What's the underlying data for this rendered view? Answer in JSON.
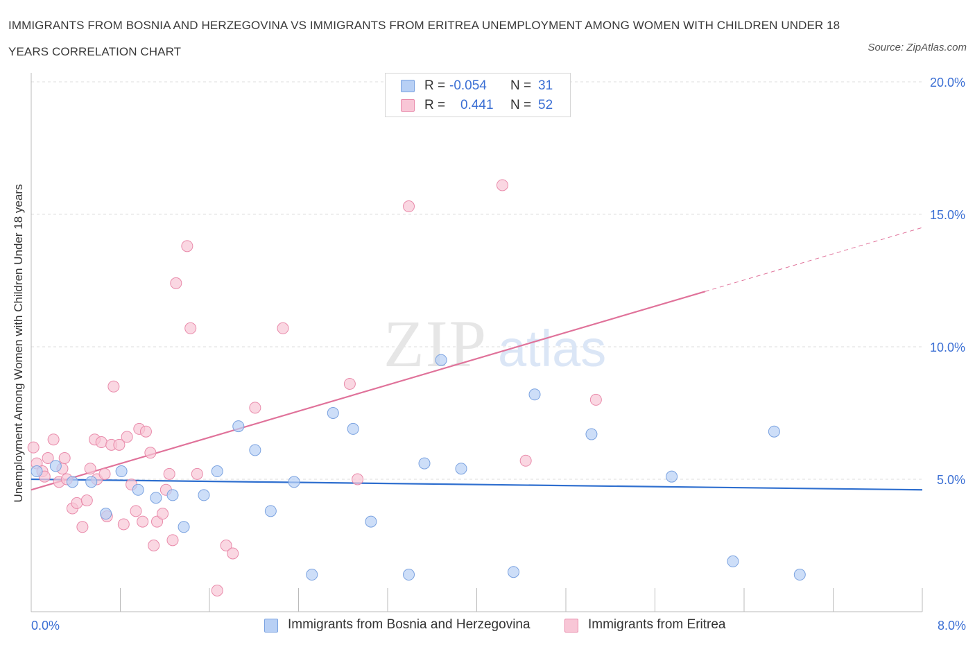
{
  "title": "IMMIGRANTS FROM BOSNIA AND HERZEGOVINA VS IMMIGRANTS FROM ERITREA UNEMPLOYMENT AMONG WOMEN WITH CHILDREN UNDER 18 YEARS CORRELATION CHART",
  "source": "Source: ZipAtlas.com",
  "watermark": {
    "zip": "ZIP",
    "atlas": "atlas"
  },
  "legend_top": [
    {
      "r_label": "R = ",
      "r_value": "-0.054",
      "n_label": "N = ",
      "n_value": "31"
    },
    {
      "r_label": "R = ",
      "r_value": "0.441",
      "n_label": "N = ",
      "n_value": "52"
    }
  ],
  "colors": {
    "blue_fill": "#b8d0f5",
    "blue_stroke": "#7aa2e0",
    "blue_line": "#2f6fcf",
    "pink_fill": "#f8c6d6",
    "pink_stroke": "#e98aaa",
    "pink_line": "#e0729a",
    "axis_text": "#3b6fd4",
    "grid": "#dddddd"
  },
  "chart_data": {
    "type": "scatter",
    "title": "IMMIGRANTS FROM BOSNIA AND HERZEGOVINA VS IMMIGRANTS FROM ERITREA UNEMPLOYMENT AMONG WOMEN WITH CHILDREN UNDER 18 YEARS CORRELATION CHART",
    "xlabel": "",
    "ylabel": "Unemployment Among Women with Children Under 18 years",
    "xlim": [
      0,
      8
    ],
    "ylim": [
      0,
      20
    ],
    "x_tick_labels": [
      "0.0%",
      "8.0%"
    ],
    "y_ticks": [
      5,
      10,
      15,
      20
    ],
    "y_tick_labels": [
      "5.0%",
      "10.0%",
      "15.0%",
      "20.0%"
    ],
    "grid": true,
    "legend": "bottom",
    "series": [
      {
        "name": "Immigrants from Bosnia and Herzegovina",
        "R": -0.054,
        "N": 31,
        "trend": {
          "x0": 0.0,
          "y0": 5.0,
          "x1": 8.0,
          "y1": 4.6
        },
        "points": [
          [
            0.05,
            5.3
          ],
          [
            0.22,
            5.5
          ],
          [
            0.37,
            4.9
          ],
          [
            0.54,
            4.9
          ],
          [
            0.67,
            3.7
          ],
          [
            0.81,
            5.3
          ],
          [
            0.96,
            4.6
          ],
          [
            1.12,
            4.3
          ],
          [
            1.27,
            4.4
          ],
          [
            1.37,
            3.2
          ],
          [
            1.55,
            4.4
          ],
          [
            1.67,
            5.3
          ],
          [
            1.86,
            7.0
          ],
          [
            2.01,
            6.1
          ],
          [
            2.15,
            3.8
          ],
          [
            2.36,
            4.9
          ],
          [
            2.52,
            1.4
          ],
          [
            2.71,
            7.5
          ],
          [
            2.89,
            6.9
          ],
          [
            3.05,
            3.4
          ],
          [
            3.39,
            1.4
          ],
          [
            3.53,
            5.6
          ],
          [
            3.68,
            9.5
          ],
          [
            3.86,
            5.4
          ],
          [
            4.33,
            1.5
          ],
          [
            4.52,
            8.2
          ],
          [
            5.03,
            6.7
          ],
          [
            5.75,
            5.1
          ],
          [
            6.3,
            1.9
          ],
          [
            6.67,
            6.8
          ],
          [
            6.9,
            1.4
          ]
        ]
      },
      {
        "name": "Immigrants from Eritrea",
        "R": 0.441,
        "N": 52,
        "trend": {
          "x0": 0.0,
          "y0": 4.6,
          "x1": 8.0,
          "y1": 14.5,
          "solid_until_x": 6.05
        },
        "points": [
          [
            0.02,
            6.2
          ],
          [
            0.05,
            5.6
          ],
          [
            0.1,
            5.3
          ],
          [
            0.15,
            5.8
          ],
          [
            0.2,
            6.5
          ],
          [
            0.25,
            4.9
          ],
          [
            0.28,
            5.4
          ],
          [
            0.32,
            5.0
          ],
          [
            0.37,
            3.9
          ],
          [
            0.41,
            4.1
          ],
          [
            0.46,
            3.2
          ],
          [
            0.5,
            4.2
          ],
          [
            0.53,
            5.4
          ],
          [
            0.57,
            6.5
          ],
          [
            0.59,
            5.0
          ],
          [
            0.63,
            6.4
          ],
          [
            0.66,
            5.2
          ],
          [
            0.68,
            3.6
          ],
          [
            0.72,
            6.3
          ],
          [
            0.74,
            8.5
          ],
          [
            0.79,
            6.3
          ],
          [
            0.83,
            3.3
          ],
          [
            0.86,
            6.6
          ],
          [
            0.9,
            4.8
          ],
          [
            0.94,
            3.8
          ],
          [
            0.97,
            6.9
          ],
          [
            1.0,
            3.4
          ],
          [
            1.03,
            6.8
          ],
          [
            1.07,
            6.0
          ],
          [
            1.1,
            2.5
          ],
          [
            1.13,
            3.4
          ],
          [
            1.18,
            3.7
          ],
          [
            1.21,
            4.6
          ],
          [
            1.24,
            5.2
          ],
          [
            1.27,
            2.7
          ],
          [
            1.3,
            12.4
          ],
          [
            1.4,
            13.8
          ],
          [
            1.43,
            10.7
          ],
          [
            1.49,
            5.2
          ],
          [
            1.67,
            0.8
          ],
          [
            1.75,
            2.5
          ],
          [
            1.81,
            2.2
          ],
          [
            2.01,
            7.7
          ],
          [
            2.26,
            10.7
          ],
          [
            2.86,
            8.6
          ],
          [
            2.93,
            5.0
          ],
          [
            3.39,
            15.3
          ],
          [
            4.23,
            16.1
          ],
          [
            4.44,
            5.7
          ],
          [
            5.07,
            8.0
          ],
          [
            0.3,
            5.8
          ],
          [
            0.12,
            5.1
          ]
        ]
      }
    ]
  }
}
